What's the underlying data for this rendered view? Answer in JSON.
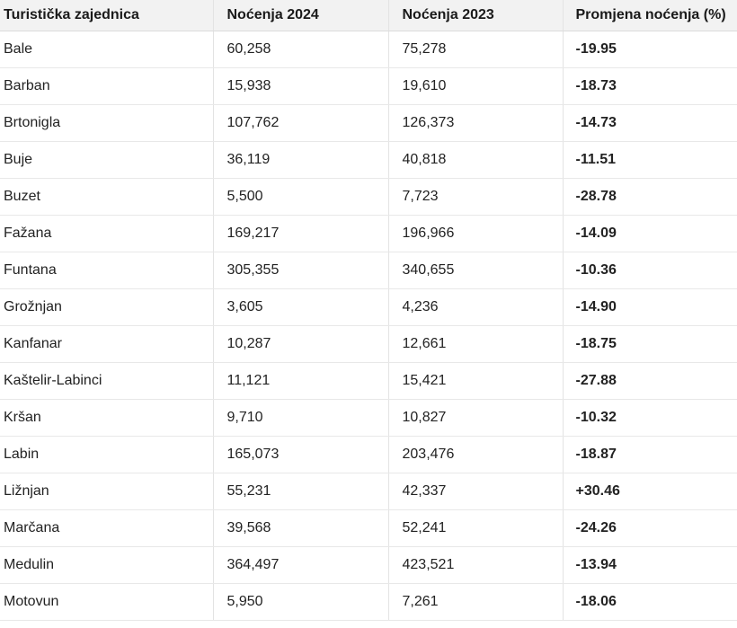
{
  "table": {
    "headers": [
      "Turistička zajednica",
      "Noćenja 2024",
      "Noćenja 2023",
      "Promjena noćenja (%)"
    ],
    "rows": [
      [
        "Bale",
        "60,258",
        "75,278",
        "-19.95"
      ],
      [
        "Barban",
        "15,938",
        "19,610",
        "-18.73"
      ],
      [
        "Brtonigla",
        "107,762",
        "126,373",
        "-14.73"
      ],
      [
        "Buje",
        "36,119",
        "40,818",
        "-11.51"
      ],
      [
        "Buzet",
        "5,500",
        "7,723",
        "-28.78"
      ],
      [
        "Fažana",
        "169,217",
        "196,966",
        "-14.09"
      ],
      [
        "Funtana",
        "305,355",
        "340,655",
        "-10.36"
      ],
      [
        "Grožnjan",
        "3,605",
        "4,236",
        "-14.90"
      ],
      [
        "Kanfanar",
        "10,287",
        "12,661",
        "-18.75"
      ],
      [
        "Kaštelir-Labinci",
        "11,121",
        "15,421",
        "-27.88"
      ],
      [
        "Kršan",
        "9,710",
        "10,827",
        "-10.32"
      ],
      [
        "Labin",
        "165,073",
        "203,476",
        "-18.87"
      ],
      [
        "Ližnjan",
        "55,231",
        "42,337",
        "+30.46"
      ],
      [
        "Marčana",
        "39,568",
        "52,241",
        "-24.26"
      ],
      [
        "Medulin",
        "364,497",
        "423,521",
        "-13.94"
      ],
      [
        "Motovun",
        "5,950",
        "7,261",
        "-18.06"
      ]
    ]
  }
}
